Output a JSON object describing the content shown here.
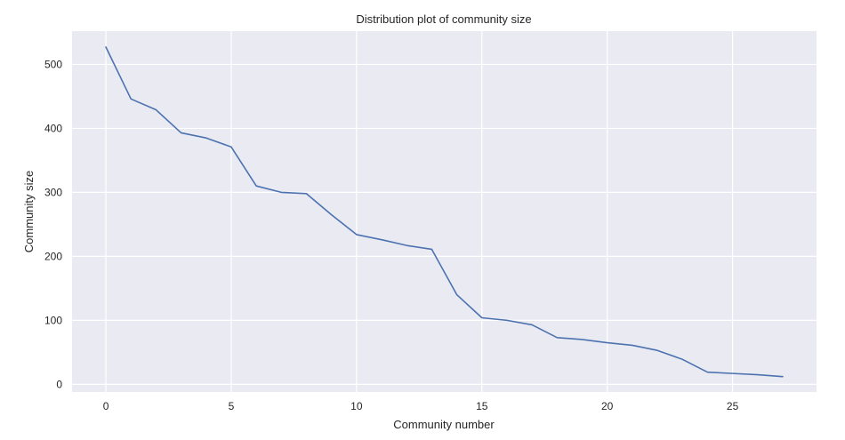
{
  "chart_data": {
    "type": "line",
    "title": "Distribution plot of community size",
    "xlabel": "Community number",
    "ylabel": "Community size",
    "xlim": [
      -1.35,
      28.35
    ],
    "ylim": [
      -12,
      552
    ],
    "xticks": [
      0,
      5,
      10,
      15,
      20,
      25
    ],
    "yticks": [
      0,
      100,
      200,
      300,
      400,
      500
    ],
    "grid": true,
    "x": [
      0,
      1,
      2,
      3,
      4,
      5,
      6,
      7,
      8,
      9,
      10,
      11,
      12,
      13,
      14,
      15,
      16,
      17,
      18,
      19,
      20,
      21,
      22,
      23,
      24,
      25,
      26,
      27
    ],
    "series": [
      {
        "values": [
          527,
          446,
          429,
          393,
          385,
          371,
          310,
          300,
          298,
          265,
          234,
          226,
          217,
          211,
          140,
          104,
          100,
          93,
          73,
          70,
          65,
          61,
          53,
          39,
          19,
          17,
          15,
          12
        ],
        "color": "#4c72b0"
      }
    ],
    "plot_background": "#eaeaf2",
    "grid_color": "#ffffff"
  }
}
